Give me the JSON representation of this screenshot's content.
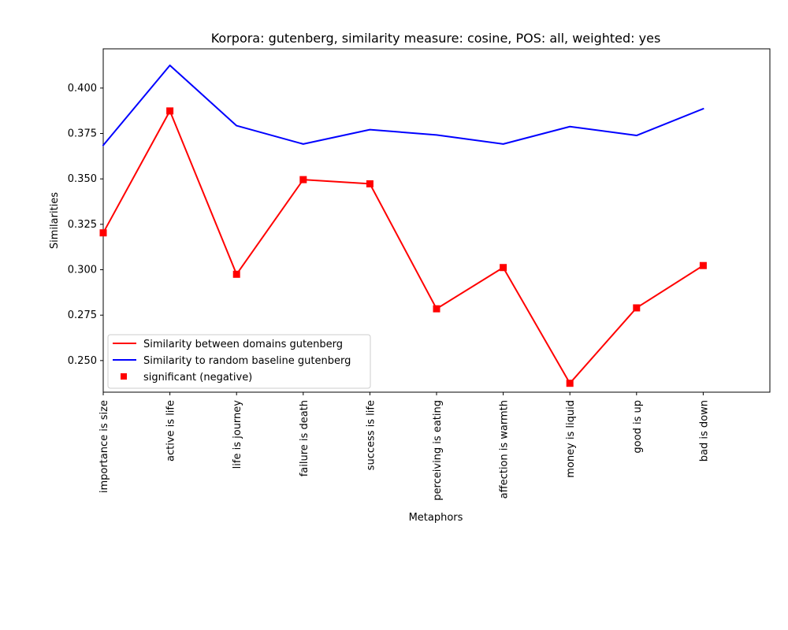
{
  "chart_data": {
    "type": "line",
    "title": "Korpora: gutenberg, similarity measure: cosine, POS: all, weighted: yes",
    "xlabel": "Metaphors",
    "ylabel": "Similarities",
    "categories": [
      "importance is size",
      "active is life",
      "life is journey",
      "failure is death",
      "success is life",
      "perceiving is eating",
      "affection is warmth",
      "money is liquid",
      "good is up",
      "bad is down"
    ],
    "series": [
      {
        "name": "Similarity between domains gutenberg",
        "color": "#ff0000",
        "style": "line",
        "values": [
          0.3203,
          0.3874,
          0.2975,
          0.3496,
          0.3473,
          0.2785,
          0.3012,
          0.2375,
          0.279,
          0.3023
        ]
      },
      {
        "name": "Similarity to random baseline gutenberg",
        "color": "#0000ff",
        "style": "line",
        "values": [
          0.3685,
          0.4125,
          0.3793,
          0.3692,
          0.3771,
          0.3742,
          0.3692,
          0.3788,
          0.3739,
          0.3886
        ]
      },
      {
        "name": "significant (negative)",
        "color": "#ff0000",
        "style": "marker-square",
        "values": [
          0.3203,
          0.3874,
          0.2975,
          0.3496,
          0.3473,
          0.2785,
          0.3012,
          0.2375,
          0.279,
          0.3023
        ]
      }
    ],
    "ylim": [
      0.2326,
      0.4216
    ],
    "xlim": [
      0,
      10
    ],
    "yticks": [
      "0.250",
      "0.275",
      "0.300",
      "0.325",
      "0.350",
      "0.375",
      "0.400"
    ],
    "ytick_values": [
      0.25,
      0.275,
      0.3,
      0.325,
      0.35,
      0.375,
      0.4
    ],
    "grid": false,
    "legend_position": "lower-left"
  }
}
